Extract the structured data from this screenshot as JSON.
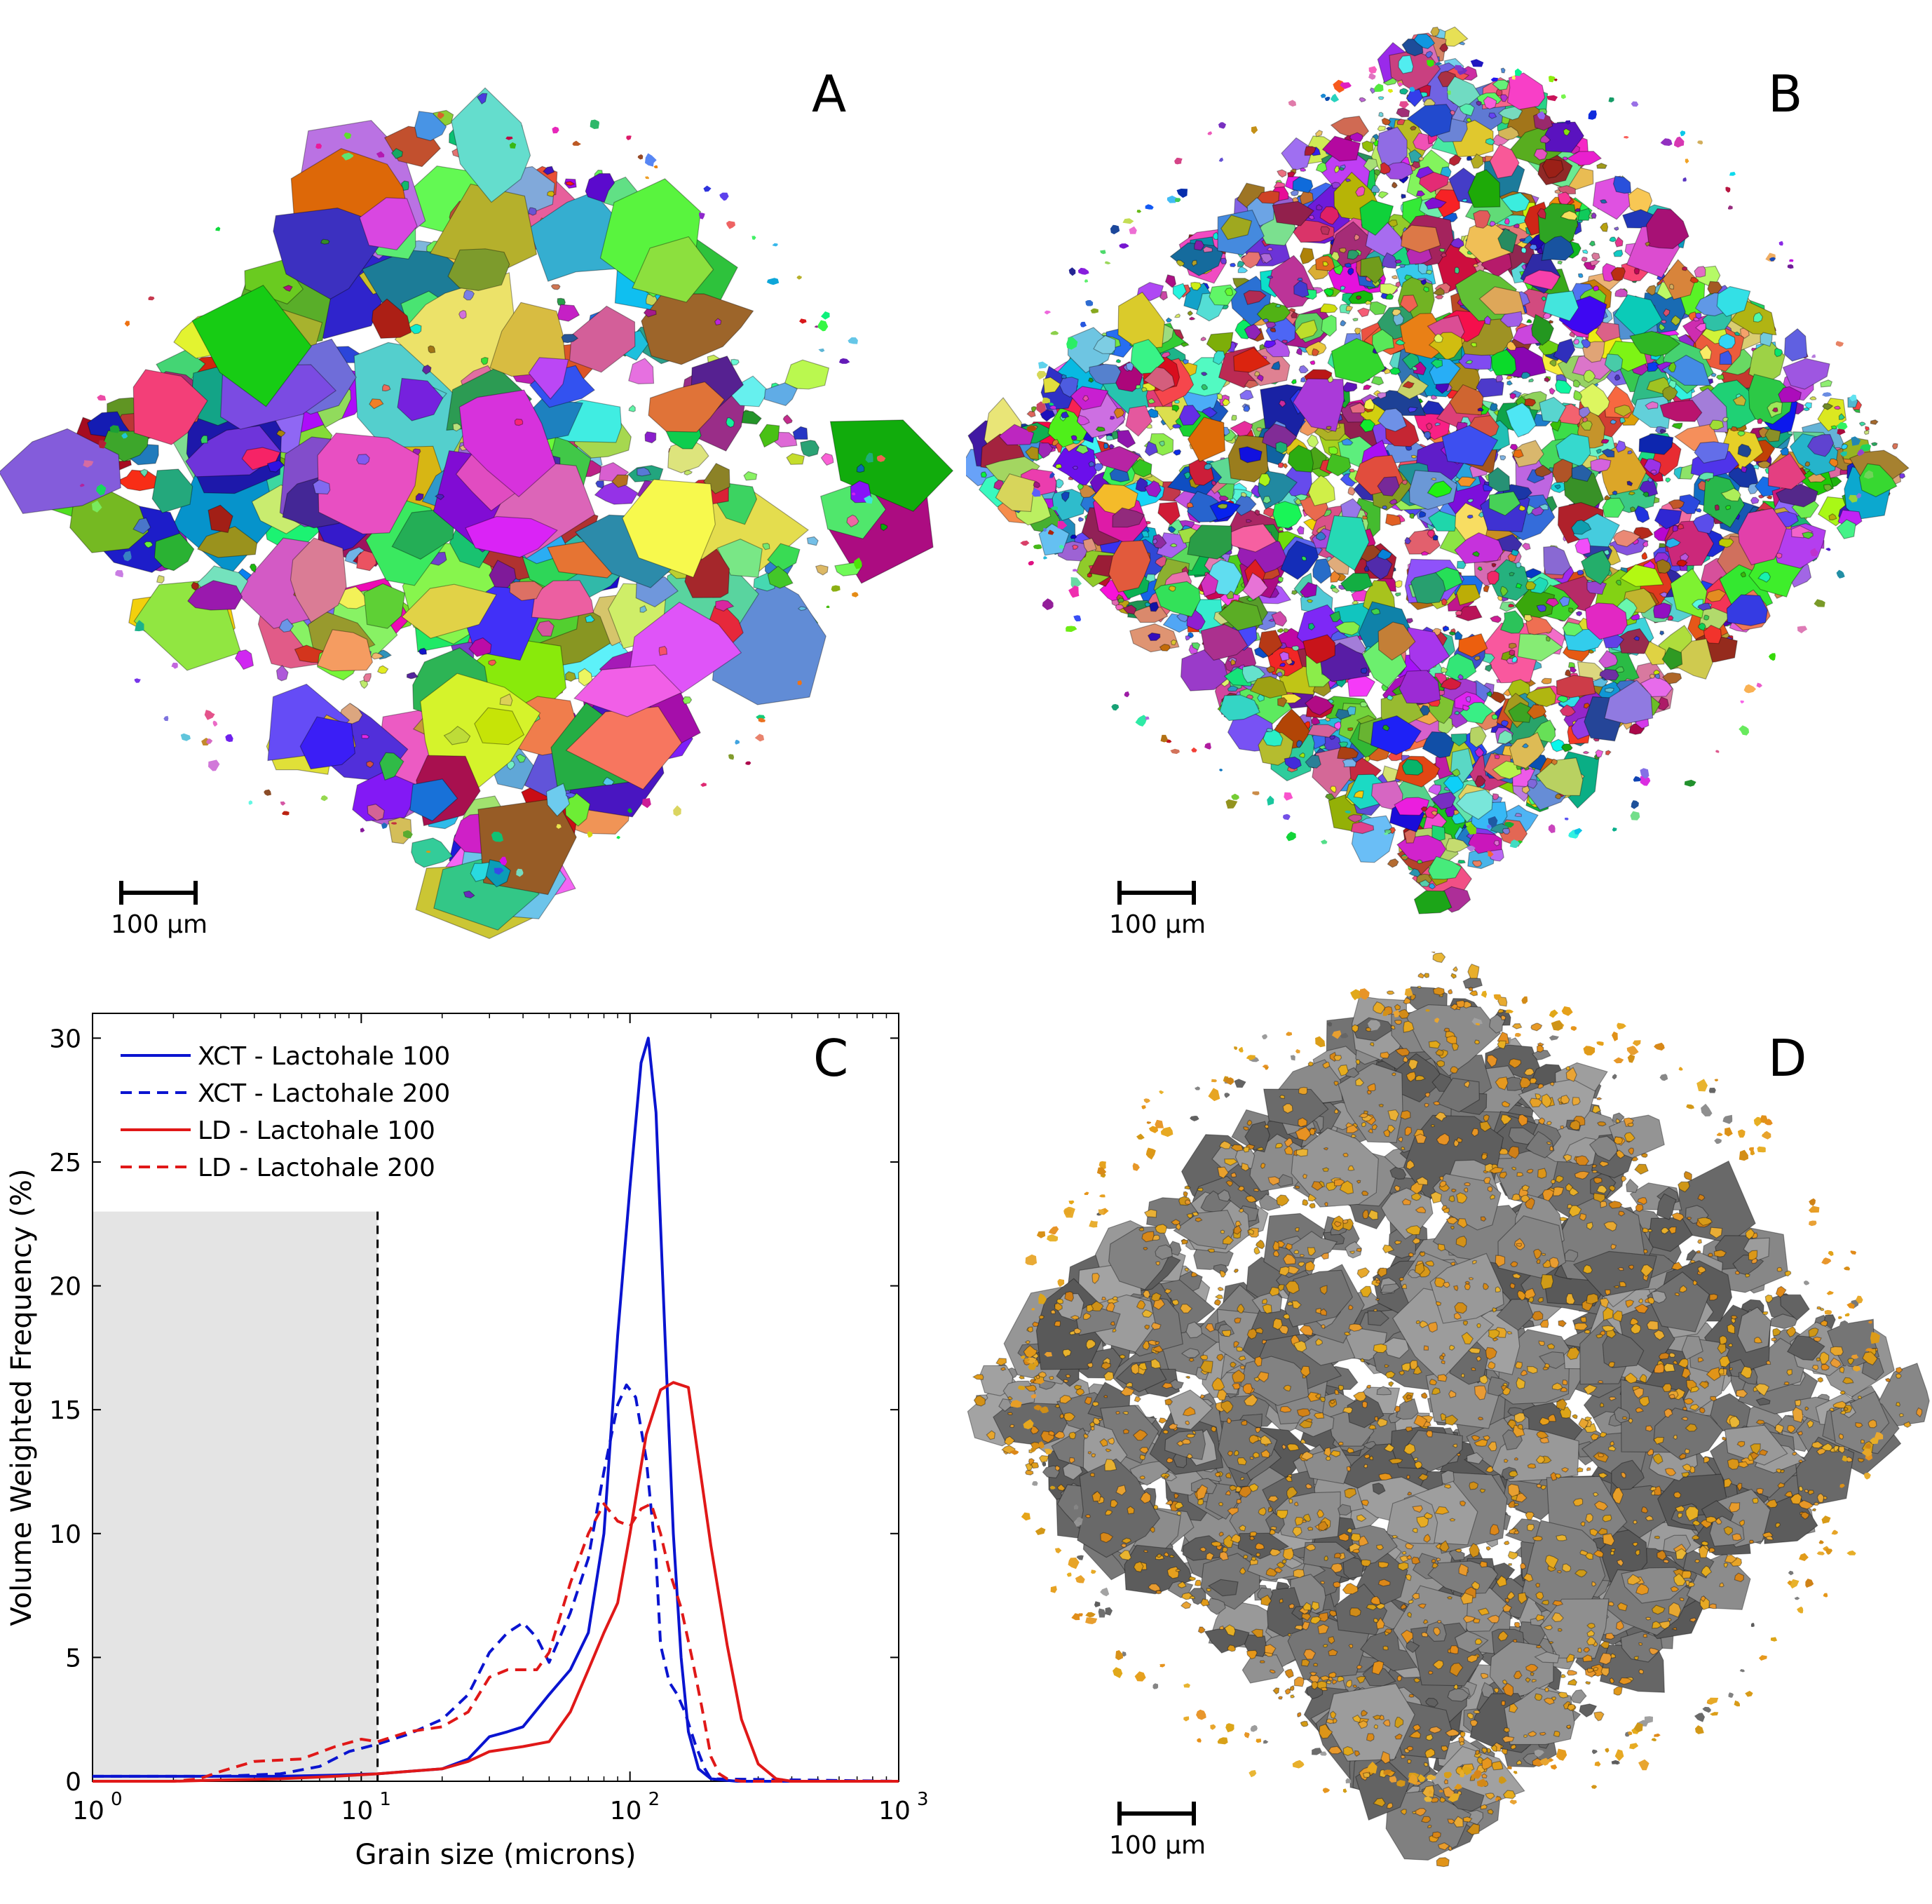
{
  "panels": {
    "a": {
      "letter": "A",
      "scale_label": "100 µm"
    },
    "b": {
      "letter": "B",
      "scale_label": "100 µm"
    },
    "c": {
      "letter": "C"
    },
    "d": {
      "letter": "D",
      "scale_label": "100 µm"
    }
  },
  "colors": {
    "xct": "#0a14d0",
    "ld": "#e01818",
    "shade": "#e4e4e4",
    "grain_gray": "#707070",
    "grain_orange": "#e39a1c"
  },
  "chart_data": {
    "type": "line",
    "xlabel": "Grain size (microns)",
    "ylabel": "Volume Weighted Frequency (%)",
    "xscale": "log",
    "xlim": [
      1,
      1000
    ],
    "ylim": [
      0,
      31
    ],
    "xticks": [
      {
        "value": 1,
        "base": "10",
        "exp": "0"
      },
      {
        "value": 10,
        "base": "10",
        "exp": "1"
      },
      {
        "value": 100,
        "base": "10",
        "exp": "2"
      },
      {
        "value": 1000,
        "base": "10",
        "exp": "3"
      }
    ],
    "yticks": [
      0,
      5,
      10,
      15,
      20,
      25,
      30
    ],
    "shaded_region": {
      "x": [
        1,
        11.5
      ],
      "y": [
        0,
        23
      ]
    },
    "threshold_x": 11.5,
    "legend_position": "top-left",
    "series": [
      {
        "name": "XCT - Lactohale 100",
        "color": "#0a14d0",
        "dash": "solid",
        "points": [
          [
            1,
            0.2
          ],
          [
            2,
            0.2
          ],
          [
            5,
            0.2
          ],
          [
            8,
            0.25
          ],
          [
            11.5,
            0.3
          ],
          [
            15,
            0.4
          ],
          [
            20,
            0.5
          ],
          [
            25,
            0.9
          ],
          [
            30,
            1.8
          ],
          [
            35,
            2.0
          ],
          [
            40,
            2.2
          ],
          [
            50,
            3.5
          ],
          [
            60,
            4.5
          ],
          [
            70,
            6.0
          ],
          [
            80,
            10.0
          ],
          [
            90,
            18.0
          ],
          [
            100,
            24.0
          ],
          [
            110,
            29.0
          ],
          [
            117,
            30.0
          ],
          [
            125,
            27.0
          ],
          [
            135,
            18.0
          ],
          [
            145,
            10.0
          ],
          [
            155,
            5.0
          ],
          [
            165,
            2.0
          ],
          [
            180,
            0.5
          ],
          [
            200,
            0.1
          ],
          [
            250,
            0
          ],
          [
            1000,
            0
          ]
        ]
      },
      {
        "name": "XCT - Lactohale 200",
        "color": "#0a14d0",
        "dash": "dashed",
        "points": [
          [
            1,
            0.2
          ],
          [
            3,
            0.2
          ],
          [
            5,
            0.3
          ],
          [
            7,
            0.6
          ],
          [
            9,
            1.2
          ],
          [
            11.5,
            1.5
          ],
          [
            15,
            1.9
          ],
          [
            20,
            2.5
          ],
          [
            25,
            3.5
          ],
          [
            30,
            5.2
          ],
          [
            35,
            6.0
          ],
          [
            40,
            6.4
          ],
          [
            45,
            5.8
          ],
          [
            50,
            4.8
          ],
          [
            60,
            6.8
          ],
          [
            70,
            9.0
          ],
          [
            80,
            12.5
          ],
          [
            90,
            15.2
          ],
          [
            97,
            16.0
          ],
          [
            105,
            15.5
          ],
          [
            115,
            13.0
          ],
          [
            125,
            9.0
          ],
          [
            130,
            5.5
          ],
          [
            140,
            4.0
          ],
          [
            150,
            3.5
          ],
          [
            160,
            2.8
          ],
          [
            175,
            1.5
          ],
          [
            190,
            0.5
          ],
          [
            200,
            0.1
          ],
          [
            1000,
            0
          ]
        ]
      },
      {
        "name": "LD - Lactohale 100",
        "color": "#e01818",
        "dash": "solid",
        "points": [
          [
            1,
            0
          ],
          [
            2,
            0
          ],
          [
            3,
            0.05
          ],
          [
            5,
            0.1
          ],
          [
            8,
            0.2
          ],
          [
            11.5,
            0.3
          ],
          [
            15,
            0.4
          ],
          [
            20,
            0.5
          ],
          [
            25,
            0.8
          ],
          [
            30,
            1.2
          ],
          [
            40,
            1.4
          ],
          [
            50,
            1.6
          ],
          [
            60,
            2.8
          ],
          [
            70,
            4.5
          ],
          [
            80,
            6.0
          ],
          [
            90,
            7.2
          ],
          [
            100,
            10.0
          ],
          [
            115,
            14.0
          ],
          [
            130,
            15.8
          ],
          [
            145,
            16.1
          ],
          [
            165,
            15.9
          ],
          [
            180,
            13.0
          ],
          [
            200,
            9.5
          ],
          [
            230,
            5.5
          ],
          [
            260,
            2.5
          ],
          [
            300,
            0.7
          ],
          [
            350,
            0.1
          ],
          [
            400,
            0
          ],
          [
            1000,
            0
          ]
        ]
      },
      {
        "name": "LD - Lactohale 200",
        "color": "#e01818",
        "dash": "dashed",
        "points": [
          [
            1,
            0
          ],
          [
            2,
            0
          ],
          [
            2.5,
            0.1
          ],
          [
            3,
            0.4
          ],
          [
            4,
            0.8
          ],
          [
            6,
            0.9
          ],
          [
            8,
            1.4
          ],
          [
            10,
            1.7
          ],
          [
            11.5,
            1.6
          ],
          [
            15,
            2.0
          ],
          [
            20,
            2.2
          ],
          [
            25,
            2.8
          ],
          [
            30,
            4.2
          ],
          [
            35,
            4.5
          ],
          [
            40,
            4.5
          ],
          [
            45,
            4.5
          ],
          [
            50,
            5.2
          ],
          [
            60,
            8.0
          ],
          [
            70,
            10.0
          ],
          [
            80,
            11.2
          ],
          [
            90,
            10.5
          ],
          [
            100,
            10.3
          ],
          [
            110,
            11.0
          ],
          [
            120,
            11.2
          ],
          [
            130,
            10.0
          ],
          [
            140,
            8.5
          ],
          [
            155,
            7.0
          ],
          [
            170,
            5.0
          ],
          [
            185,
            3.0
          ],
          [
            200,
            1.0
          ],
          [
            215,
            0.3
          ],
          [
            230,
            0.1
          ],
          [
            260,
            0
          ],
          [
            1000,
            0
          ]
        ]
      }
    ]
  }
}
